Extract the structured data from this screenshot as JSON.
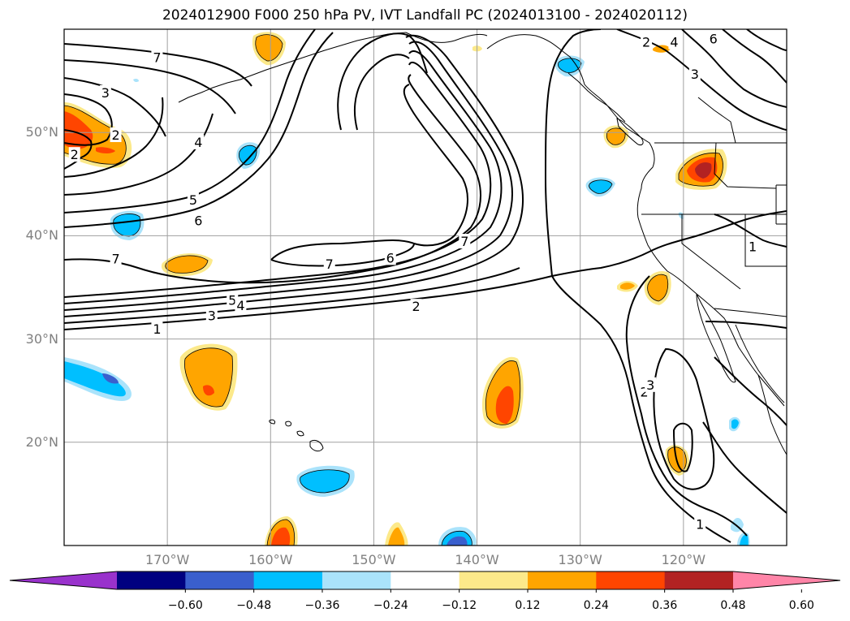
{
  "title": "2024012900 F000 250 hPa PV, IVT Landfall PC (2024013100 - 2024020112)",
  "map": {
    "projection": "plate-carree",
    "lon_range": [
      -180,
      -110
    ],
    "lat_range": [
      10,
      60
    ],
    "grid_color": "#a0a0a0",
    "lat_labels": [
      {
        "value": 50,
        "text": "50°N"
      },
      {
        "value": 40,
        "text": "40°N"
      },
      {
        "value": 30,
        "text": "30°N"
      },
      {
        "value": 20,
        "text": "20°N"
      }
    ],
    "lon_labels": [
      {
        "value": -170,
        "text": "170°W"
      },
      {
        "value": -160,
        "text": "160°W"
      },
      {
        "value": -150,
        "text": "150°W"
      },
      {
        "value": -140,
        "text": "140°W"
      },
      {
        "value": -130,
        "text": "130°W"
      },
      {
        "value": -120,
        "text": "120°W"
      }
    ],
    "pv_contour_labels": [
      {
        "text": "7",
        "lon": -171,
        "lat": 57.2
      },
      {
        "text": "3",
        "lon": -176,
        "lat": 53.8
      },
      {
        "text": "2",
        "lon": -175,
        "lat": 49.7
      },
      {
        "text": "2",
        "lon": -179,
        "lat": 47.8
      },
      {
        "text": "4",
        "lon": -167,
        "lat": 49.0
      },
      {
        "text": "5",
        "lon": -167.5,
        "lat": 43.4
      },
      {
        "text": "6",
        "lon": -167,
        "lat": 41.4
      },
      {
        "text": "7",
        "lon": -175,
        "lat": 37.7
      },
      {
        "text": "5",
        "lon": -163.7,
        "lat": 33.7
      },
      {
        "text": "4",
        "lon": -162.9,
        "lat": 33.2
      },
      {
        "text": "3",
        "lon": -165.7,
        "lat": 32.2
      },
      {
        "text": "2",
        "lon": -145.9,
        "lat": 33.1
      },
      {
        "text": "1",
        "lon": -171,
        "lat": 30.9
      },
      {
        "text": "7",
        "lon": -154.3,
        "lat": 37.2
      },
      {
        "text": "6",
        "lon": -148.4,
        "lat": 37.8
      },
      {
        "text": "7",
        "lon": -141.2,
        "lat": 39.4
      },
      {
        "text": "2",
        "lon": -123.6,
        "lat": 58.7
      },
      {
        "text": "4",
        "lon": -120.9,
        "lat": 58.7
      },
      {
        "text": "6",
        "lon": -117.1,
        "lat": 59.0
      },
      {
        "text": "3",
        "lon": -118.9,
        "lat": 55.6
      },
      {
        "text": "1",
        "lon": -113.3,
        "lat": 38.9
      },
      {
        "text": "2",
        "lon": -123.8,
        "lat": 24.8
      },
      {
        "text": "3",
        "lon": -123.2,
        "lat": 25.5
      },
      {
        "text": "1",
        "lon": -118.4,
        "lat": 12.0
      }
    ]
  },
  "colorbar": {
    "ticks": [
      "−0.60",
      "−0.48",
      "−0.36",
      "−0.24",
      "−0.12",
      "0.12",
      "0.24",
      "0.36",
      "0.48",
      "0.60"
    ],
    "colors": [
      "#9932cc",
      "#000080",
      "#3a5fcd",
      "#00bfff",
      "#aae3fb",
      "#ffffff",
      "#fce98a",
      "#ffa500",
      "#ff4500",
      "#b22222",
      "#ff85a8"
    ]
  },
  "shading": {
    "colors": {
      "pos1": "#fce98a",
      "pos2": "#ffa500",
      "pos3": "#ff4500",
      "pos4": "#b22222",
      "neg1": "#aae3fb",
      "neg2": "#00bfff",
      "neg3": "#3a5fcd"
    }
  }
}
